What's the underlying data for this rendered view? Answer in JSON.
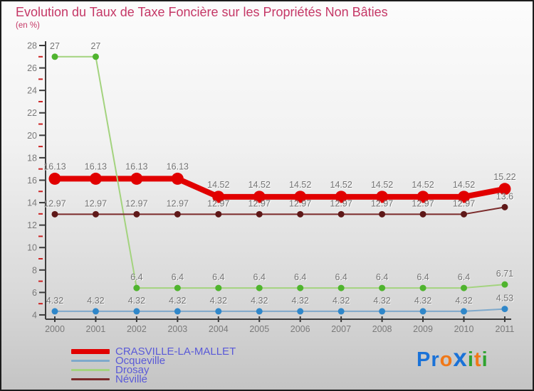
{
  "title": "Evolution du Taux de Taxe Foncière sur les Propriétés Non Bâties",
  "subtitle": "(en %)",
  "colors": {
    "title": "#c53766",
    "axis": "#3c3c3c",
    "minor_tick": "#cc2222",
    "tick_label": "#7a7a7a",
    "point_label": "#757575",
    "legend_text": "#5a5ad8",
    "background_top": "#fcfcfc",
    "background_bottom": "#c4c4c4"
  },
  "chart_data": {
    "type": "line",
    "x": [
      2000,
      2001,
      2002,
      2003,
      2004,
      2005,
      2006,
      2007,
      2008,
      2009,
      2010,
      2011
    ],
    "xlabel": "",
    "ylabel": "",
    "ylim": [
      4,
      28
    ],
    "ytick_step": 2,
    "grid": false,
    "legend_position": "bottom-left",
    "series": [
      {
        "name": "CRASVILLE-LA-MALLET",
        "line_color": "#e10000",
        "marker_color": "#e10000",
        "line_width": 8,
        "marker_radius": 8.5,
        "values": [
          16.13,
          16.13,
          16.13,
          16.13,
          14.52,
          14.52,
          14.52,
          14.52,
          14.52,
          14.52,
          14.52,
          15.22
        ]
      },
      {
        "name": "Ocqueville",
        "line_color": "#7fa9cb",
        "marker_color": "#2f87c9",
        "line_width": 2,
        "marker_radius": 4.5,
        "values": [
          4.32,
          4.32,
          4.32,
          4.32,
          4.32,
          4.32,
          4.32,
          4.32,
          4.32,
          4.32,
          4.32,
          4.53
        ]
      },
      {
        "name": "Drosay",
        "line_color": "#a3d37e",
        "marker_color": "#4fb42e",
        "line_width": 2,
        "marker_radius": 4.5,
        "values": [
          27,
          27,
          6.4,
          6.4,
          6.4,
          6.4,
          6.4,
          6.4,
          6.4,
          6.4,
          6.4,
          6.71
        ]
      },
      {
        "name": "Néville",
        "line_color": "#7b2b2b",
        "marker_color": "#5e1818",
        "line_width": 2,
        "marker_radius": 4.5,
        "values": [
          12.97,
          12.97,
          12.97,
          12.97,
          12.97,
          12.97,
          12.97,
          12.97,
          12.97,
          12.97,
          12.97,
          13.6
        ]
      }
    ]
  },
  "logo": {
    "text": "Proxiti",
    "letters": [
      {
        "ch": "P",
        "color": "#1a72d8",
        "big": false
      },
      {
        "ch": "r",
        "color": "#1a72d8",
        "big": false
      },
      {
        "ch": "o",
        "color": "#f07818",
        "big": false
      },
      {
        "ch": "x",
        "color": "#1a72d8",
        "big": true
      },
      {
        "ch": "i",
        "color": "#2fa32f",
        "big": false
      },
      {
        "ch": "t",
        "color": "#f07818",
        "big": false
      },
      {
        "ch": "i",
        "color": "#2fa32f",
        "big": false
      }
    ]
  }
}
